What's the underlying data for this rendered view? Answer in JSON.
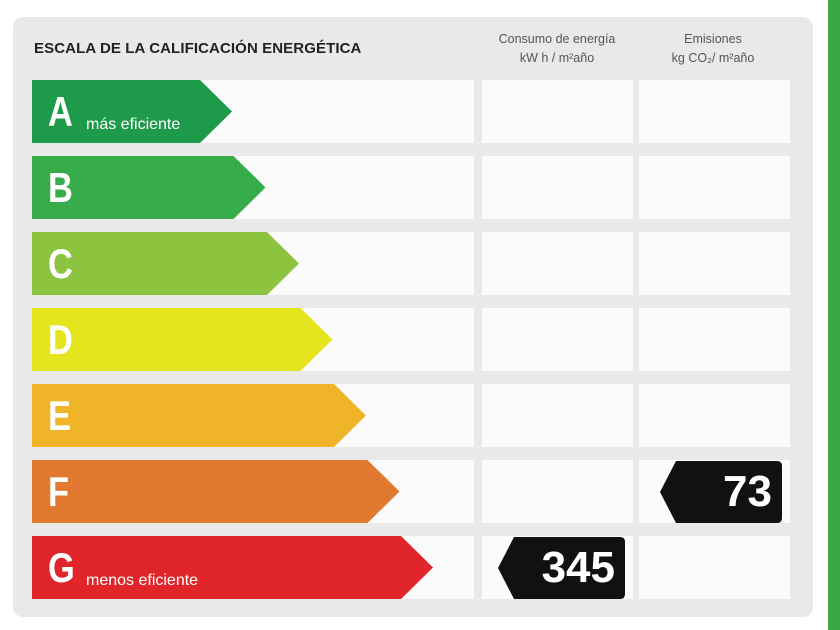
{
  "title": "ESCALA DE LA CALIFICACIÓN ENERGÉTICA",
  "columns": {
    "consumo": {
      "line1": "Consumo de energía",
      "line2": "kW h / m²año"
    },
    "emisiones": {
      "line1": "Emisiones",
      "line2": "kg CO₂/ m²año"
    }
  },
  "ratings": [
    {
      "letter": "A",
      "description": "más eficiente",
      "color": "#1e9a4b"
    },
    {
      "letter": "B",
      "description": "",
      "color": "#36ad4a"
    },
    {
      "letter": "C",
      "description": "",
      "color": "#8cc43f"
    },
    {
      "letter": "D",
      "description": "",
      "color": "#e4e41f"
    },
    {
      "letter": "E",
      "description": "",
      "color": "#f0b428"
    },
    {
      "letter": "F",
      "description": "",
      "color": "#e17a30"
    },
    {
      "letter": "G",
      "description": "menos eficiente",
      "color": "#e0262b"
    }
  ],
  "consumo_value": {
    "rating": "G",
    "value": "345"
  },
  "emisiones_value": {
    "rating": "F",
    "value": "73"
  },
  "colors": {
    "panel": "#e9e9e9",
    "cell": "#fbfbfb",
    "tag": "#111111",
    "stripe": "#3aa843"
  }
}
